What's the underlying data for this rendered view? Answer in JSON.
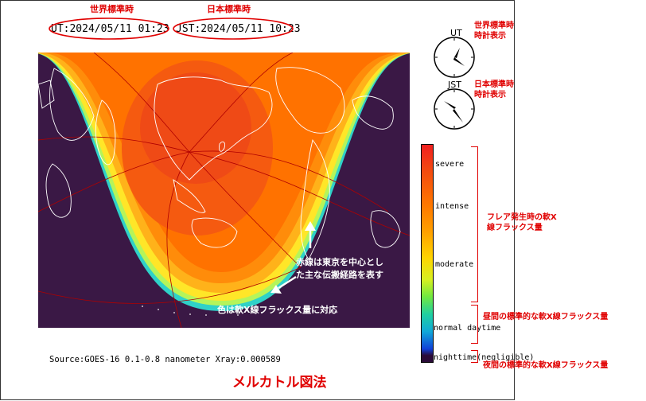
{
  "header": {
    "ut_time": "UT:2024/05/11 01:23",
    "jst_time": "JST:2024/05/11 10:23",
    "ut_caption": "世界標準時",
    "jst_caption": "日本標準時"
  },
  "clocks": {
    "ut_label": "UT",
    "jst_label": "JST",
    "ut_note_line1": "世界標準時",
    "ut_note_line2": "時計表示",
    "jst_note_line1": "日本標準時",
    "jst_note_line2": "時計表示"
  },
  "scale": {
    "labels": [
      "severe",
      "intense",
      "moderate",
      "normal daytime",
      "nighttime(negligible)"
    ],
    "note_flare_line1": "フレア発生時の軟X",
    "note_flare_line2": "線フラックス量",
    "note_day": "昼間の標準的な軟X線フラックス量",
    "note_night": "夜間の標準的な軟X線フラックス量"
  },
  "map_notes": {
    "red_lines_line1": "赤線は東京を中心とし",
    "red_lines_line2": "た主な伝搬経路を表す",
    "color_note": "色は軟X線フラックス量に対応"
  },
  "footer": {
    "source": "Source:GOES-16 0.1-0.8 nanometer  Xray:0.000589",
    "title": "メルカトル図法"
  },
  "colors": {
    "night": "#3a1845",
    "orange": "#ff7a00",
    "deep_orange": "#f04e1a",
    "yellow": "#ffd21e",
    "cyan": "#33d6d0",
    "annotation_red": "#e00000"
  }
}
